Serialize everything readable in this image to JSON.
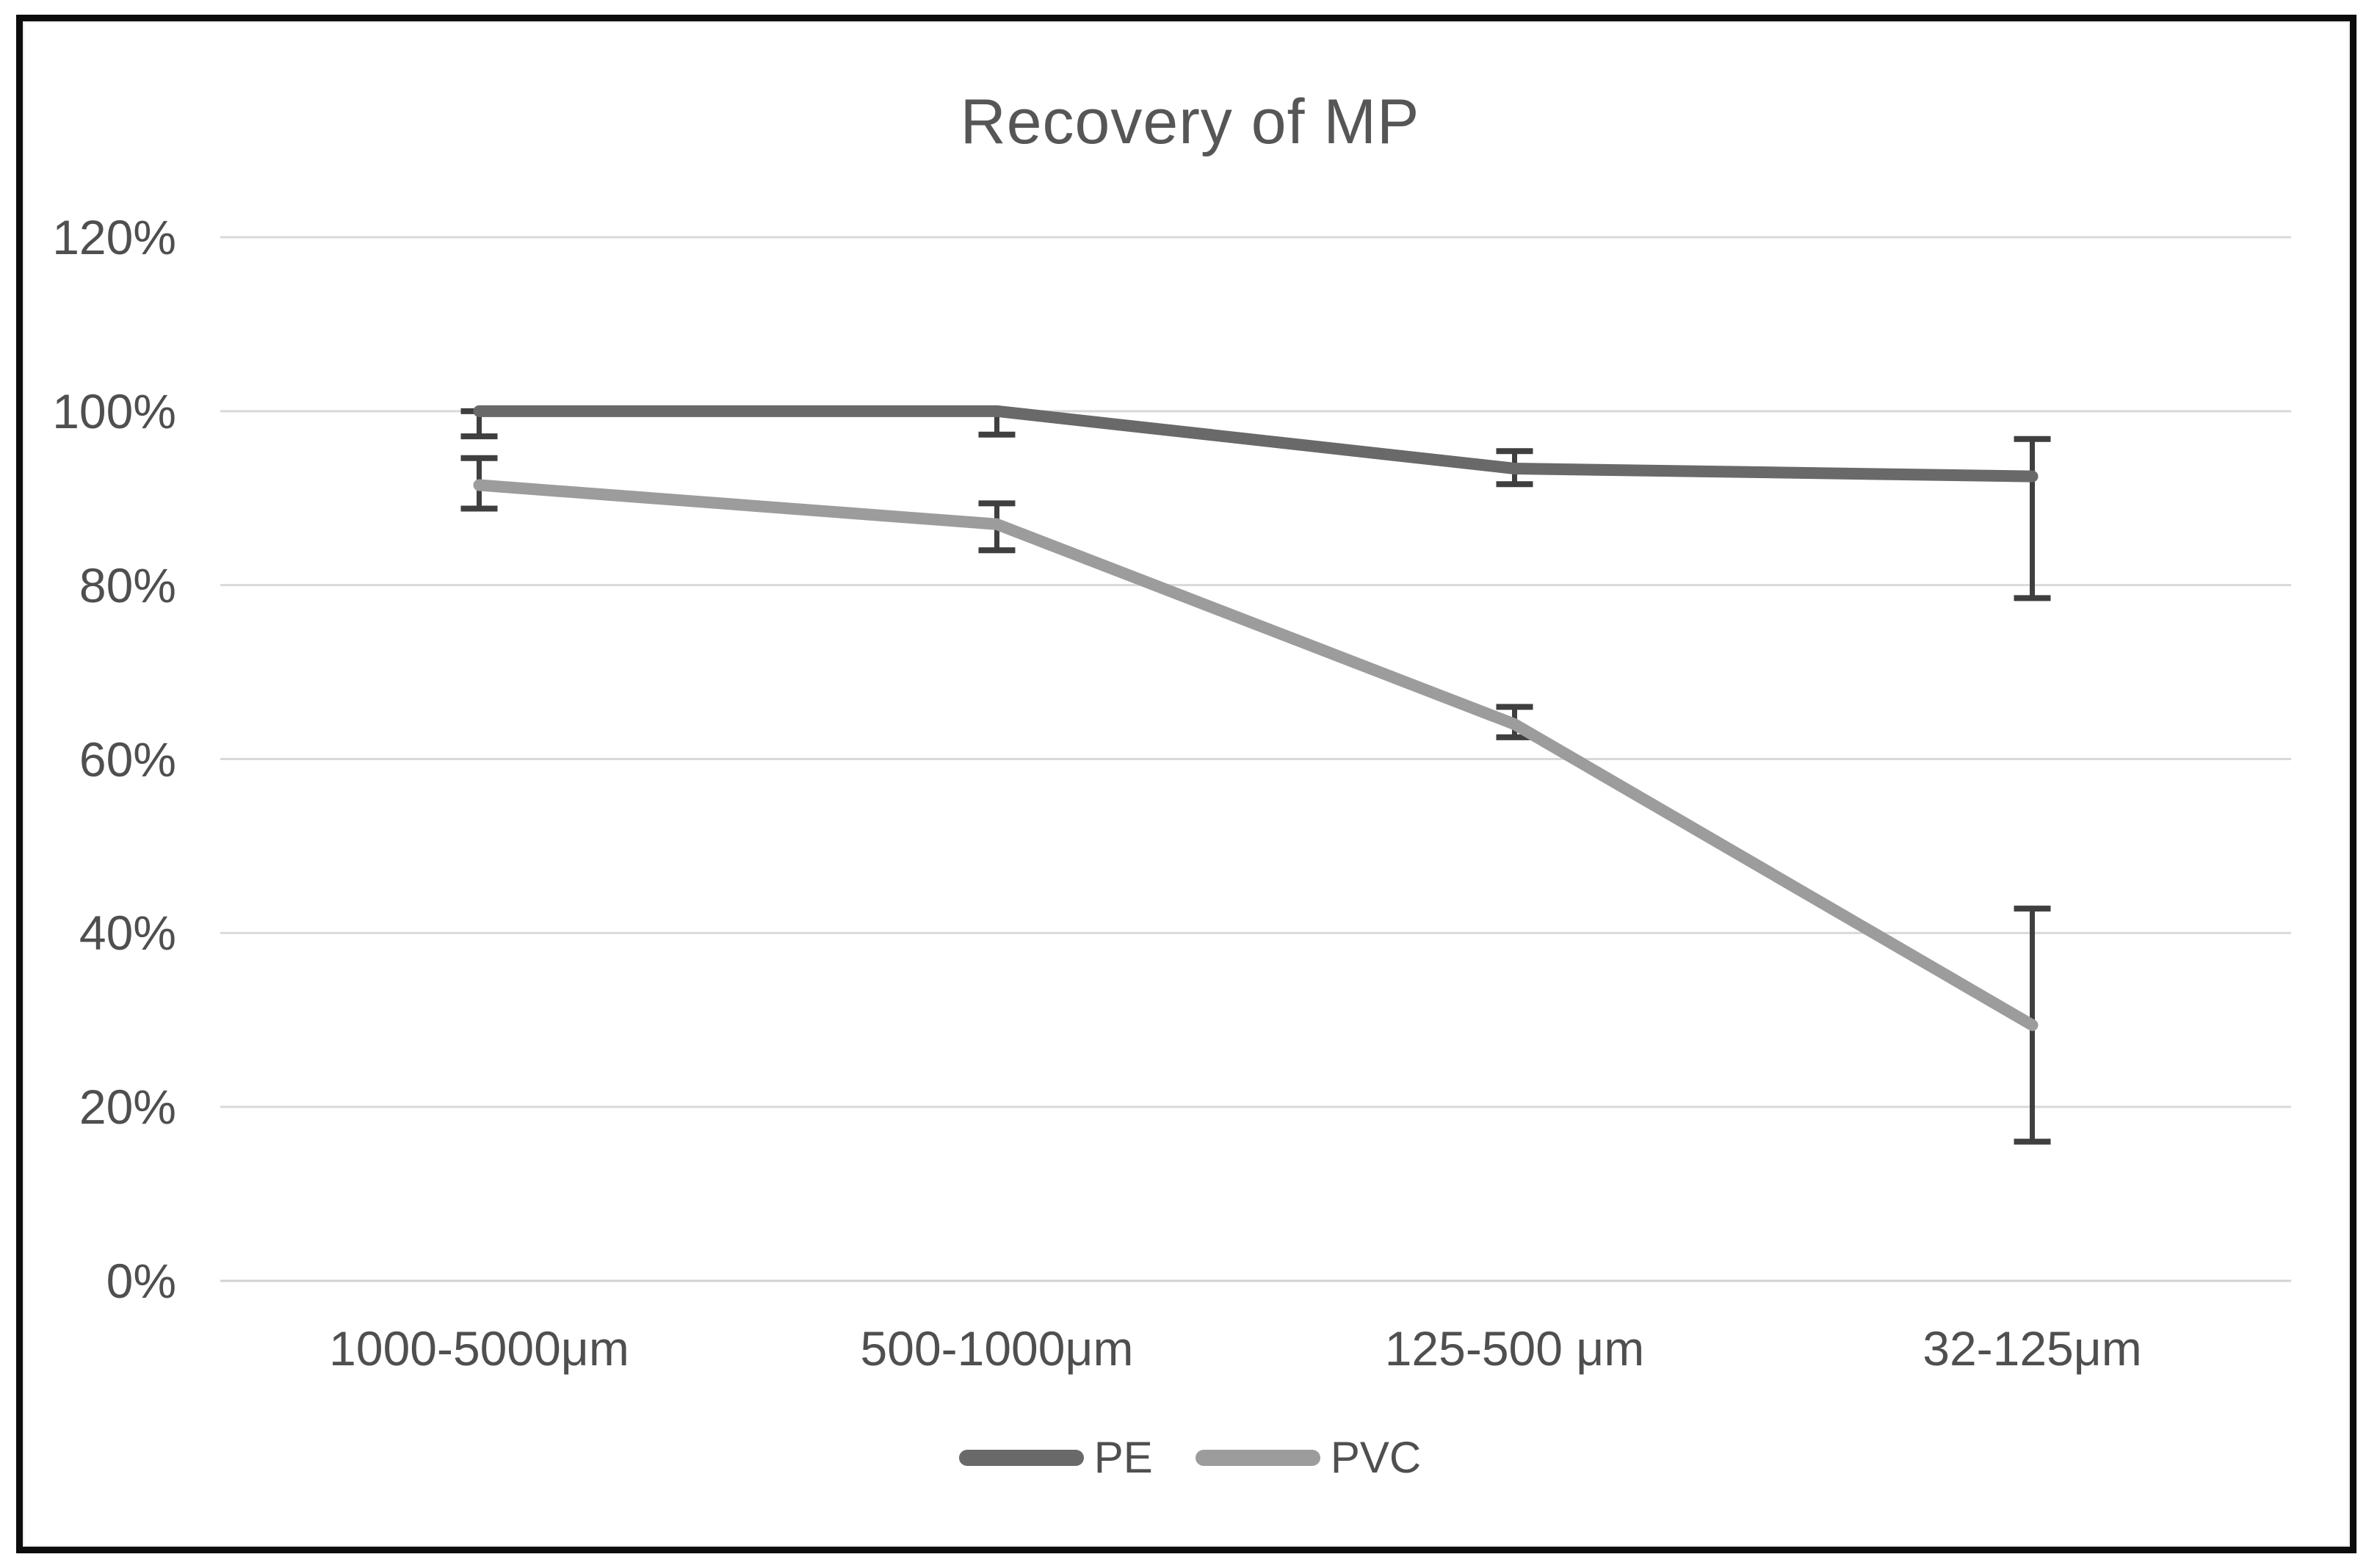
{
  "chart_data": {
    "type": "line",
    "title": "Recovery of MP",
    "categories": [
      "1000-5000μm",
      "500-1000μm",
      "125-500 μm",
      "32-125μm"
    ],
    "series": [
      {
        "name": "PE",
        "color": "#696969",
        "values": [
          100,
          100,
          93.4,
          92.5
        ],
        "error_high": [
          100,
          100,
          95.4,
          96.8
        ],
        "error_low": [
          97.1,
          97.3,
          91.6,
          78.5
        ]
      },
      {
        "name": "PVC",
        "color": "#9c9c9c",
        "values": [
          91.5,
          87,
          64,
          29.4
        ],
        "error_high": [
          94.6,
          89.4,
          66,
          42.8
        ],
        "error_low": [
          88.8,
          84,
          62.5,
          16
        ]
      }
    ],
    "xlabel": "",
    "ylabel": "",
    "ylim": [
      0,
      120
    ],
    "ytick_step": 20,
    "ytick_labels": [
      "0%",
      "20%",
      "40%",
      "60%",
      "80%",
      "100%",
      "120%"
    ],
    "grid": true,
    "legend_position": "bottom",
    "colors": {
      "error_bar": "#3f3f3f",
      "gridline": "#d9d9d9",
      "axis_line": "#d2d2d2",
      "text": "#4f4f4f",
      "title_text": "#565656",
      "frame": "#0c0c0c"
    }
  }
}
